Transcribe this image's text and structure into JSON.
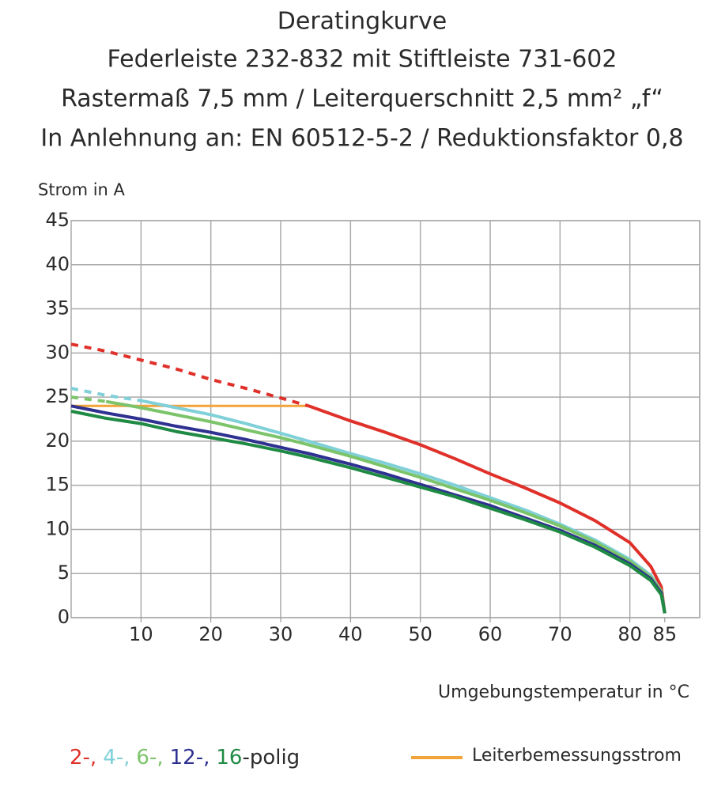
{
  "chart_data": {
    "type": "line",
    "title": [
      "Deratingkurve",
      "Federleiste 232-832 mit Stiftleiste 731-602",
      "Rastermaß 7,5 mm / Leiterquerschnitt 2,5 mm² „f“",
      "In Anlehnung an: EN 60512-5-2 / Reduktionsfaktor 0,8"
    ],
    "ylabel": "Strom in A",
    "xlabel": "Umgebungstemperatur in °C",
    "xlim": [
      0,
      90
    ],
    "ylim": [
      0,
      45
    ],
    "xticks": [
      10,
      20,
      30,
      40,
      50,
      60,
      70,
      80,
      85
    ],
    "xgrid": [
      10,
      20,
      30,
      40,
      50,
      60,
      70,
      80,
      90
    ],
    "yticks": [
      0,
      5,
      10,
      15,
      20,
      25,
      30,
      35,
      40,
      45
    ],
    "grid": true,
    "x": [
      0,
      5,
      10,
      15,
      20,
      25,
      30,
      34,
      40,
      45,
      50,
      55,
      60,
      65,
      70,
      75,
      80,
      83,
      84.5,
      85
    ],
    "series": [
      {
        "name": "2-,",
        "color": "#e0302a",
        "dashed_values": [
          31,
          30.2,
          29.2,
          28.2,
          27,
          26,
          24.9,
          24,
          null,
          null,
          null,
          null,
          null,
          null,
          null,
          null,
          null,
          null,
          null,
          null
        ],
        "values": [
          null,
          null,
          null,
          null,
          null,
          null,
          null,
          24,
          22.3,
          21,
          19.6,
          18,
          16.3,
          14.7,
          13,
          11,
          8.5,
          5.8,
          3.5,
          0.5
        ]
      },
      {
        "name": "4-,",
        "color": "#7fd0d8",
        "dashed_values": [
          26,
          25.2,
          24.6,
          null,
          null,
          null,
          null,
          null,
          null,
          null,
          null,
          null,
          null,
          null,
          null,
          null,
          null,
          null,
          null,
          null
        ],
        "values": [
          null,
          null,
          24.6,
          23.8,
          23,
          22,
          20.9,
          20,
          18.6,
          17.5,
          16.3,
          15,
          13.6,
          12.2,
          10.6,
          8.8,
          6.6,
          4.8,
          3,
          0.6
        ]
      },
      {
        "name": "6-,",
        "color": "#7cc46a",
        "dashed_values": [
          25,
          24.5,
          null,
          null,
          null,
          null,
          null,
          null,
          null,
          null,
          null,
          null,
          null,
          null,
          null,
          null,
          null,
          null,
          null,
          null
        ],
        "values": [
          null,
          24.5,
          23.8,
          23,
          22.2,
          21.3,
          20.4,
          19.6,
          18.3,
          17.1,
          15.9,
          14.6,
          13.3,
          11.9,
          10.4,
          8.6,
          6.4,
          4.6,
          3,
          0.6
        ]
      },
      {
        "name": "12-,",
        "color": "#2e3190",
        "dashed_values": [
          null,
          null,
          null,
          null,
          null,
          null,
          null,
          null,
          null,
          null,
          null,
          null,
          null,
          null,
          null,
          null,
          null,
          null,
          null,
          null
        ],
        "values": [
          24,
          23.2,
          22.5,
          21.7,
          21,
          20.2,
          19.3,
          18.6,
          17.4,
          16.3,
          15.1,
          13.9,
          12.7,
          11.3,
          9.9,
          8.2,
          6.1,
          4.4,
          2.8,
          0.5
        ]
      },
      {
        "name": "16",
        "color": "#1f8a44",
        "dashed_values": [
          null,
          null,
          null,
          null,
          null,
          null,
          null,
          null,
          null,
          null,
          null,
          null,
          null,
          null,
          null,
          null,
          null,
          null,
          null,
          null
        ],
        "values": [
          23.4,
          22.6,
          22,
          21.1,
          20.4,
          19.7,
          18.9,
          18.2,
          17,
          15.9,
          14.8,
          13.7,
          12.4,
          11.1,
          9.7,
          8,
          5.9,
          4.2,
          2.6,
          0.5
        ]
      }
    ],
    "legend_suffix": "-polig",
    "rated": {
      "name": "Leiterbemessungsstrom",
      "color": "#f2a33a",
      "values": [
        24,
        24,
        24,
        24,
        24,
        24,
        24,
        24,
        null,
        null,
        null,
        null,
        null,
        null,
        null,
        null,
        null,
        null,
        null,
        null
      ]
    }
  }
}
